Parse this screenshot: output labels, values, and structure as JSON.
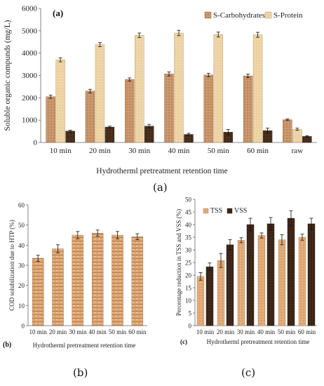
{
  "colors": {
    "brown_light": "#c8946a",
    "brown_pale": "#efd6a8",
    "brown_dark": "#4a2f1d",
    "tss": "#e0aa78",
    "vss": "#3a2418",
    "cod": "#d9a06a"
  },
  "captions": {
    "a": "(a)",
    "b": "(b)",
    "c": "(c)"
  },
  "chart_data": [
    {
      "panel": "(a)",
      "type": "bar",
      "categories": [
        "10 min",
        "20 min",
        "30 min",
        "40 min",
        "50 min",
        "60 min",
        "raw"
      ],
      "series": [
        {
          "name": "S-Carbohydrates",
          "values": [
            2050,
            2300,
            2820,
            3070,
            3020,
            2980,
            1020
          ],
          "errors": [
            70,
            80,
            70,
            90,
            80,
            80,
            30
          ]
        },
        {
          "name": "S-Protein",
          "values": [
            3700,
            4380,
            4800,
            4900,
            4830,
            4820,
            590
          ],
          "errors": [
            90,
            90,
            100,
            120,
            110,
            110,
            50
          ]
        },
        {
          "name": "",
          "values": [
            510,
            690,
            730,
            360,
            460,
            530,
            270
          ],
          "errors": [
            40,
            40,
            80,
            50,
            120,
            110,
            30
          ]
        }
      ],
      "ylabel": "Soluble organic compunds (mg/L)",
      "xlabel": "Hydrotherml pretreatment retention time",
      "ylim": [
        0,
        6000
      ],
      "yticks": [
        "0",
        "1000",
        "2000",
        "3000",
        "4000",
        "5000",
        "6000"
      ],
      "legend": "top-right",
      "grid": false
    },
    {
      "panel": "(b)",
      "type": "bar",
      "categories": [
        "10 min",
        "20 min",
        "30 min",
        "40 min",
        "50 min",
        "60 min"
      ],
      "series": [
        {
          "name": "",
          "values": [
            33.5,
            38.2,
            45.0,
            46.0,
            45.0,
            44.2
          ],
          "errors": [
            1.5,
            2.0,
            1.8,
            1.5,
            1.8,
            1.5
          ]
        }
      ],
      "ylabel": "COD solubilization due to HTP (%)",
      "xlabel": "Hydrotherml pretreatment retention time",
      "ylim": [
        0,
        60
      ],
      "yticks": [
        "0",
        "10",
        "20",
        "30",
        "40",
        "50",
        "60"
      ],
      "grid": false
    },
    {
      "panel": "(c)",
      "type": "bar",
      "categories": [
        "10 min",
        "20 min",
        "30 min",
        "40 min",
        "50 min",
        "60 min"
      ],
      "series": [
        {
          "name": "TSS",
          "values": [
            19.5,
            25.8,
            33.8,
            35.7,
            34.0,
            35.0
          ],
          "errors": [
            1.5,
            2.8,
            1.0,
            1.0,
            2.0,
            1.2
          ]
        },
        {
          "name": "VSS",
          "values": [
            23.3,
            32.0,
            40.0,
            40.3,
            42.5,
            40.3
          ],
          "errors": [
            1.5,
            2.0,
            2.5,
            2.5,
            3.0,
            2.2
          ]
        }
      ],
      "ylabel": "Percentage reduction in TSS and VSS (%)",
      "xlabel": "Hydrotherml pretreatment retention time",
      "ylim": [
        0,
        50
      ],
      "yticks": [
        "0",
        "5",
        "10",
        "15",
        "20",
        "25",
        "30",
        "35",
        "40",
        "45",
        "50"
      ],
      "legend": "top-left",
      "grid": false
    }
  ]
}
